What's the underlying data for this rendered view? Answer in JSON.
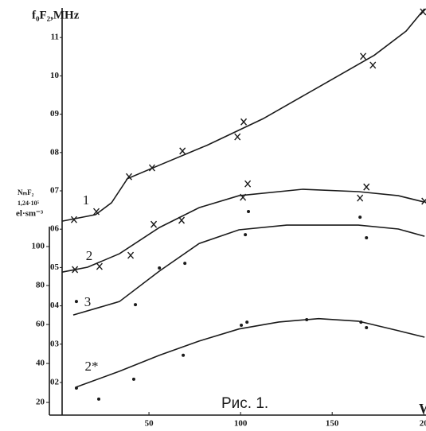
{
  "chart_data": {
    "type": "line",
    "y_label": "f₀F₂,MHz",
    "y2_label": [
      "NₘF₂",
      "1,24·10⁵",
      "el·sm⁻³"
    ],
    "x_label": "W",
    "annotation": "Рис. 1.",
    "xlim": [
      2.6,
      201.2
    ],
    "xticks": [
      50,
      100,
      150,
      {
        "value": 200,
        "label": "20"
      }
    ],
    "ylim": [
      1.15,
      11.8
    ],
    "yticks": [
      {
        "value": 2,
        "label": "02"
      },
      {
        "value": 3,
        "label": "03"
      },
      {
        "value": 4,
        "label": "04"
      },
      {
        "value": 5,
        "label": "05"
      },
      {
        "value": 6,
        "label": "06"
      },
      {
        "value": 7,
        "label": "07"
      },
      {
        "value": 8,
        "label": "08"
      },
      {
        "value": 9,
        "label": "09"
      },
      10,
      11
    ],
    "y2lim": [
      13.5,
      220
    ],
    "y2ticks": [
      20,
      40,
      60,
      80,
      100
    ],
    "series": [
      {
        "name": "1",
        "color": "#1a1a1a",
        "axis": "y",
        "marker": "x",
        "x": [
          9.1,
          21.3,
          39.1,
          51.7,
          68.3,
          98.3,
          101.7,
          166.9,
          172.2,
          199.6
        ],
        "values": [
          6.25,
          6.46,
          7.37,
          7.6,
          8.04,
          8.41,
          8.8,
          10.51,
          10.28,
          11.67
        ],
        "fit_x": [
          2.6,
          20.9,
          29.6,
          38.3,
          55.7,
          81.8,
          112.2,
          142.6,
          173.0,
          190.4,
          200.4
        ],
        "fit_values": [
          6.21,
          6.38,
          6.69,
          7.32,
          7.67,
          8.19,
          8.88,
          9.71,
          10.54,
          11.17,
          11.75
        ]
      },
      {
        "name": "2",
        "color": "#1a1a1a",
        "axis": "y2",
        "marker": "x",
        "x": [
          9.6,
          23.0,
          40.0,
          52.6,
          67.8,
          101.3,
          103.9,
          165.2,
          168.7,
          200.4
        ],
        "values": [
          88.2,
          89.8,
          95.5,
          111.4,
          113.5,
          125.3,
          132.2,
          124.9,
          130.6,
          123.3
        ],
        "fit_x": [
          2.6,
          16.5,
          33.9,
          55.7,
          77.4,
          99.1,
          133.9,
          164.3,
          186.1,
          200.4
        ],
        "fit_values": [
          86.9,
          89.4,
          96.3,
          109.8,
          120.0,
          126.1,
          129.4,
          128.2,
          126.1,
          122.8
        ]
      },
      {
        "name": "3",
        "color": "#1a1a1a",
        "axis": "y2",
        "marker": "dot",
        "x": [
          10.4,
          42.6,
          55.7,
          69.6,
          102.6,
          104.3,
          165.2,
          168.7
        ],
        "values": [
          71.8,
          70.2,
          89.0,
          91.4,
          106.1,
          118.0,
          115.1,
          104.5
        ],
        "fit_x": [
          8.7,
          33.9,
          55.7,
          77.4,
          99.1,
          125.2,
          164.3,
          186.1,
          200.4
        ],
        "fit_values": [
          64.9,
          71.8,
          87.4,
          101.6,
          108.6,
          111.0,
          111.0,
          109.0,
          105.3
        ]
      },
      {
        "name": "2*",
        "color": "#1a1a1a",
        "axis": "y2",
        "marker": "dot",
        "x": [
          10.4,
          22.6,
          41.7,
          68.7,
          100.4,
          103.5,
          136.1,
          165.7,
          168.7
        ],
        "values": [
          27.4,
          21.7,
          31.9,
          44.2,
          59.6,
          61.2,
          62.5,
          61.2,
          58.4
        ],
        "fit_x": [
          10.0,
          33.9,
          55.7,
          77.4,
          99.1,
          120.9,
          142.6,
          164.3,
          186.1,
          200.4
        ],
        "fit_values": [
          27.8,
          36.0,
          44.2,
          51.5,
          57.7,
          61.3,
          63.0,
          61.7,
          56.8,
          53.5
        ]
      }
    ]
  }
}
